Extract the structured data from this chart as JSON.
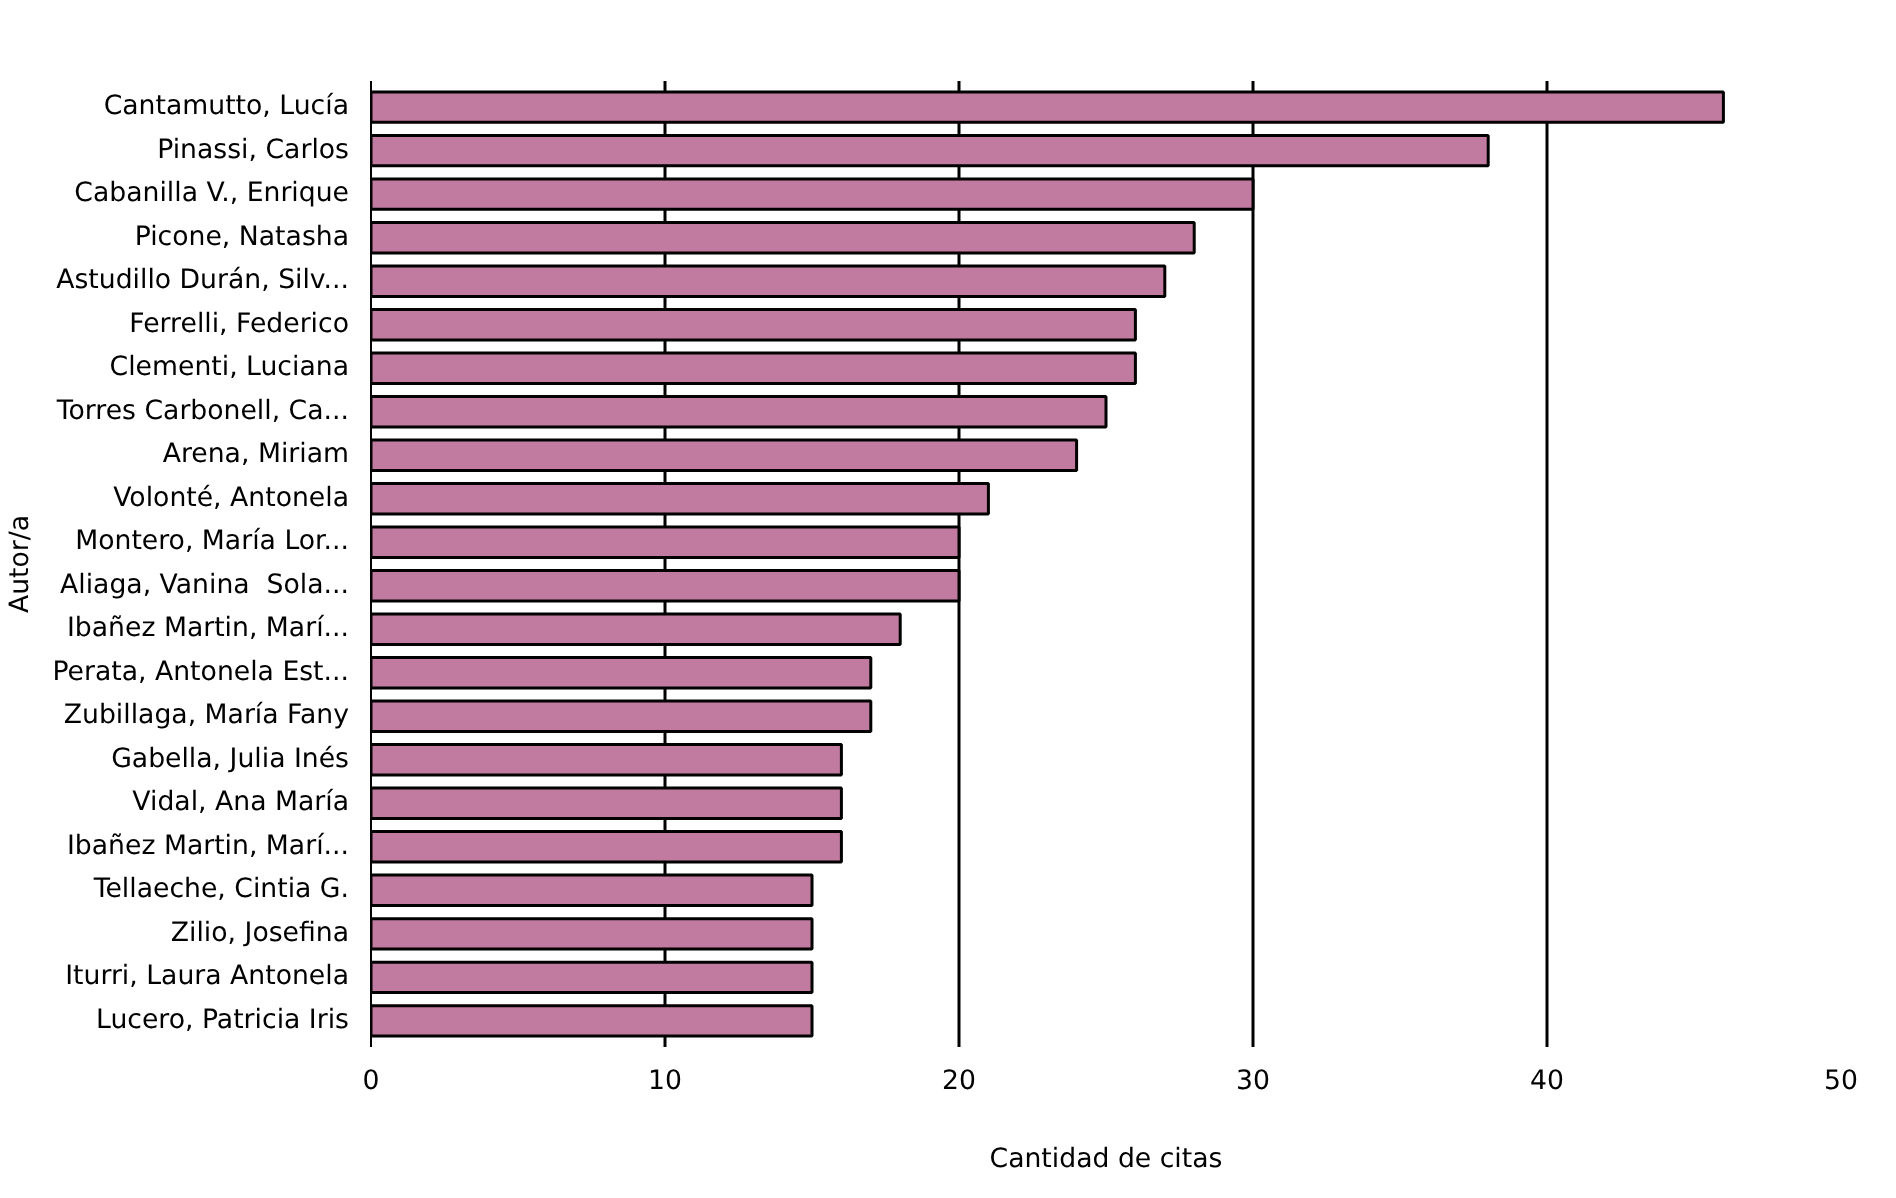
{
  "chart_data": {
    "type": "bar",
    "orientation": "horizontal",
    "xlabel": "Cantidad de citas",
    "ylabel": "Autor/a",
    "categories": [
      "Cantamutto, Lucía",
      "Pinassi, Carlos",
      "Cabanilla V., Enrique",
      "Picone, Natasha",
      "Astudillo Durán, Silv...",
      "Ferrelli, Federico",
      "Clementi, Luciana",
      "Torres Carbonell, Ca...",
      "Arena, Miriam",
      "Volonté, Antonela",
      "Montero, María Lor...",
      "Aliaga, Vanina  Sola...",
      "Ibañez Martin, Marí...",
      "Perata, Antonela Est...",
      "Zubillaga, María Fany",
      "Gabella, Julia Inés",
      "Vidal, Ana María",
      "Ibañez Martin, Marí...",
      "Tellaeche, Cintia G.",
      "Zilio, Josefina",
      "Iturri, Laura Antonela",
      "Lucero, Patricia Iris"
    ],
    "values": [
      46,
      38,
      30,
      28,
      27,
      26,
      26,
      25,
      24,
      21,
      20,
      20,
      18,
      17,
      17,
      16,
      16,
      16,
      15,
      15,
      15,
      15
    ],
    "color": "#c27ba0",
    "xlim": [
      0,
      50
    ],
    "xticks": [
      0,
      10,
      20,
      30,
      40,
      50
    ],
    "grid": "x"
  }
}
